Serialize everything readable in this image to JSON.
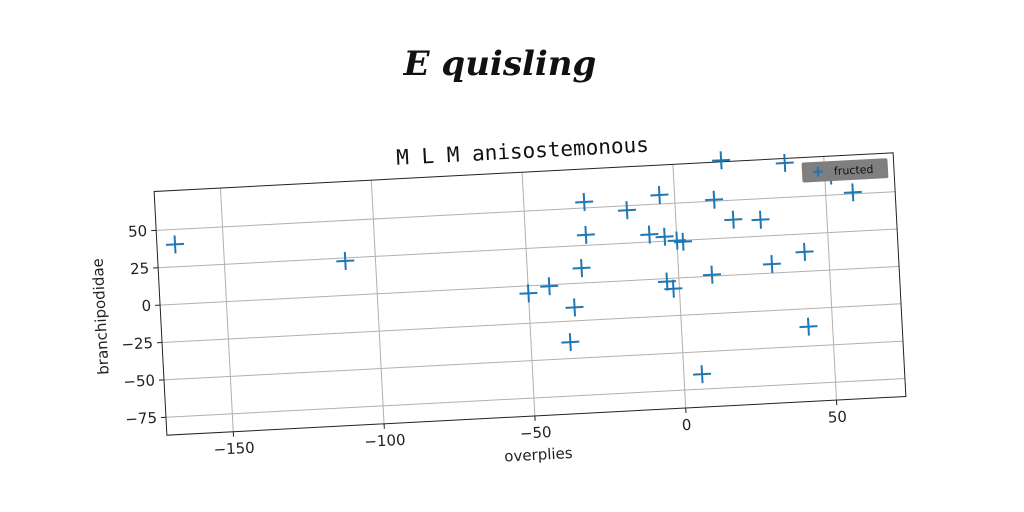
{
  "page_title": "E quisling",
  "chart_data": {
    "type": "scatter",
    "title": "M L M anisostemonous",
    "xlabel": "overplies",
    "ylabel": "branchipodidae",
    "xlim": [
      -172,
      73
    ],
    "ylim": [
      -87,
      76
    ],
    "grid": true,
    "legend_placement": "top-right",
    "series": [
      {
        "name": "fructed",
        "color": "#1f77b4",
        "marker": "plus",
        "points": [
          [
            -166,
            40
          ],
          [
            -110,
            23
          ],
          [
            -50,
            -5
          ],
          [
            -43,
            -1
          ],
          [
            -37,
            -39
          ],
          [
            -35,
            -16
          ],
          [
            -32,
            10
          ],
          [
            -30,
            32
          ],
          [
            -30,
            54
          ],
          [
            -16,
            47
          ],
          [
            -9,
            30
          ],
          [
            -5,
            56
          ],
          [
            -4,
            28
          ],
          [
            -4,
            -2
          ],
          [
            -2,
            -7
          ],
          [
            0,
            25
          ],
          [
            2,
            24
          ],
          [
            6,
            -65
          ],
          [
            11,
            1
          ],
          [
            13,
            51
          ],
          [
            16,
            77
          ],
          [
            19,
            37
          ],
          [
            28,
            36
          ],
          [
            31,
            6
          ],
          [
            37,
            73
          ],
          [
            42,
            13
          ],
          [
            42,
            -37
          ],
          [
            52,
            63
          ],
          [
            59,
            51
          ]
        ]
      }
    ],
    "xticks": [
      -150,
      -100,
      -50,
      0,
      50
    ],
    "yticks": [
      50,
      25,
      0,
      -25,
      -50,
      -75
    ],
    "xtick_labels": [
      "−150",
      "−100",
      "−50",
      "0",
      "50"
    ],
    "ytick_labels": [
      "50",
      "25",
      "0",
      "−25",
      "−50",
      "−75"
    ]
  }
}
